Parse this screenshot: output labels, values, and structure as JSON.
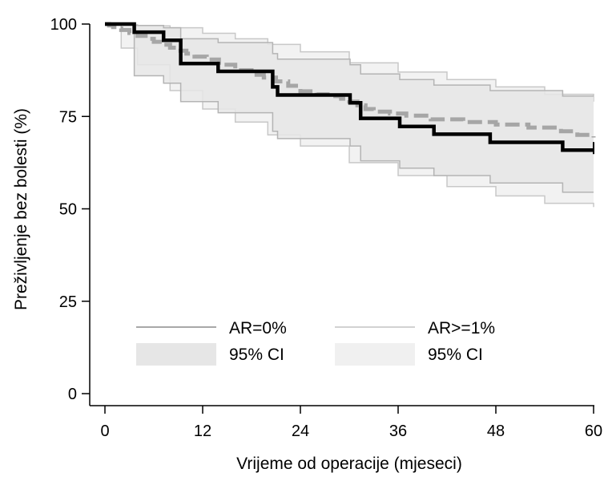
{
  "chart_data": {
    "type": "line",
    "xlabel": "Vrijeme od operacije (mjeseci)",
    "ylabel": "Preživljenje bez bolesti (%)",
    "xlim": [
      0,
      60
    ],
    "ylim": [
      0,
      100
    ],
    "xticks": [
      "0",
      "12",
      "24",
      "36",
      "48",
      "60"
    ],
    "yticks": [
      "0",
      "25",
      "50",
      "75",
      "100"
    ],
    "grid": false,
    "legend_position": "inside-bottom",
    "legend": [
      {
        "key": "ar0",
        "label": "AR=0%",
        "kind": "line"
      },
      {
        "key": "ar1",
        "label": "AR>=1%",
        "kind": "line"
      },
      {
        "key": "ar0_ci",
        "label": "95% CI",
        "kind": "band"
      },
      {
        "key": "ar1_ci",
        "label": "95% CI",
        "kind": "band"
      }
    ],
    "colors": {
      "ar0_line": "#000000",
      "ar1_line": "#a6a6a6",
      "ar0_ci_fill": "#e6e6e6",
      "ar1_ci_fill": "#f0f0f0",
      "ci_border_a": "#b4b4b4",
      "ci_border_b": "#c8c8c8",
      "legend_ar0": "#a8a8a8",
      "legend_ar1": "#d2d2d2"
    },
    "series": [
      {
        "key": "ar0",
        "x": [
          0,
          3.6,
          7.2,
          9.3,
          13.9,
          20.6,
          21.2,
          23.1,
          30.1,
          31.4,
          36.2,
          40.4,
          47.3,
          56.2,
          60
        ],
        "y": [
          100,
          97.8,
          95.6,
          89.3,
          87.2,
          83.0,
          80.8,
          80.8,
          78.7,
          74.5,
          72.3,
          70.2,
          68.0,
          65.9,
          65.9
        ]
      },
      {
        "key": "ar1",
        "x": [
          0,
          0.5,
          1,
          1.5,
          2,
          3,
          4,
          5,
          6,
          7,
          8,
          9,
          10,
          11,
          12.5,
          14,
          16,
          18,
          19.5,
          21,
          22.5,
          24,
          26,
          28,
          29,
          30,
          31,
          32,
          33,
          35,
          37,
          40,
          44,
          48,
          52,
          56,
          58,
          60
        ],
        "y": [
          100,
          99.6,
          99.2,
          98.8,
          98.4,
          97.6,
          96.8,
          96.0,
          95.2,
          94.4,
          93.6,
          92.8,
          92.0,
          91.2,
          90.4,
          89.0,
          87.5,
          86.3,
          85.5,
          84.5,
          83.3,
          81.8,
          81.0,
          80.5,
          79.8,
          79.0,
          78.0,
          77.0,
          76.3,
          75.8,
          75.2,
          74.2,
          73.5,
          72.8,
          72.0,
          71.0,
          70.0,
          69.3
        ]
      }
    ],
    "ci_bands": [
      {
        "key": "ar0_ci",
        "x": [
          0,
          3.6,
          7.2,
          9.3,
          13.9,
          20.6,
          21.2,
          23.1,
          30.1,
          31.4,
          36.2,
          40.4,
          47.3,
          56.2,
          60
        ],
        "upper": [
          100,
          99.6,
          99.0,
          96.0,
          95.0,
          92.0,
          90.5,
          90.5,
          89.0,
          86.5,
          85.0,
          83.5,
          82.0,
          80.5,
          80.5
        ],
        "lower": [
          100,
          86,
          84,
          79,
          76,
          71,
          69,
          69,
          67,
          63,
          61,
          59,
          57,
          54.5,
          54.5
        ]
      },
      {
        "key": "ar1_ci",
        "x": [
          0,
          2,
          4,
          8,
          12,
          16,
          20,
          24,
          30,
          36,
          42,
          48,
          54,
          60
        ],
        "upper": [
          100,
          99.8,
          99.5,
          99.0,
          97.5,
          96.0,
          94.5,
          92.5,
          89.5,
          87.0,
          85.0,
          83.0,
          81.0,
          79.0
        ],
        "lower": [
          100,
          93.5,
          89.0,
          82.0,
          77.0,
          73.5,
          70.0,
          67.0,
          62.5,
          59.0,
          56.0,
          53.5,
          51.5,
          50.5
        ]
      }
    ]
  }
}
